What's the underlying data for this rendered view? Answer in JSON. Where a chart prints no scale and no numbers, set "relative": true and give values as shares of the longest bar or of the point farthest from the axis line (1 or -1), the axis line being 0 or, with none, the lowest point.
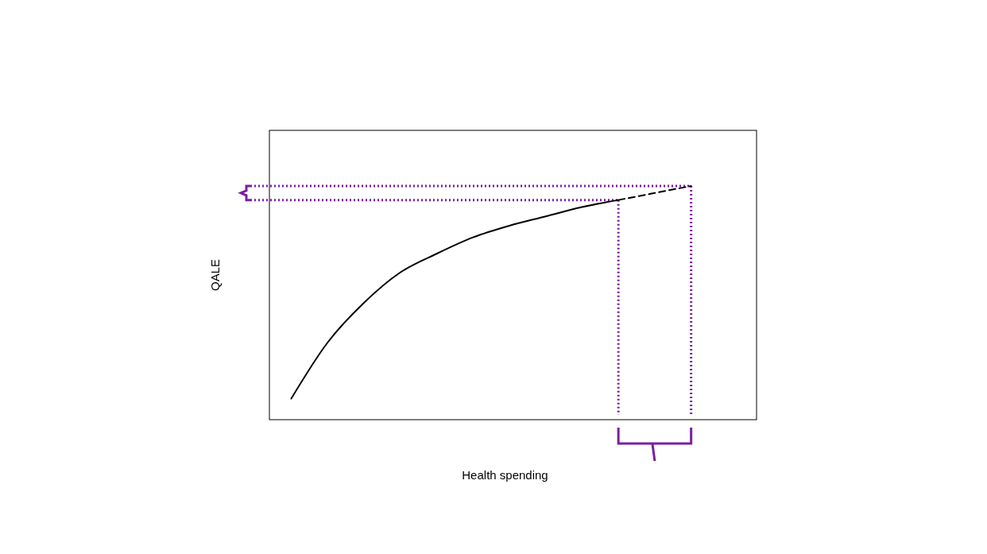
{
  "chart_data": {
    "type": "line",
    "xlabel": "Health spending",
    "ylabel": "QALE",
    "relative": true,
    "categories": [
      null,
      null,
      null,
      null,
      null,
      null,
      null,
      null,
      null,
      null,
      null,
      null
    ],
    "series": [
      {
        "color": "#000000",
        "line_style": "solid",
        "values": [
          0.09,
          0.33,
          0.5,
          0.63,
          0.71,
          0.78,
          0.83,
          0.87,
          0.91,
          0.94,
          null,
          null
        ]
      },
      {
        "color": "#000000",
        "line_style": "dashed",
        "values": [
          null,
          null,
          null,
          null,
          null,
          null,
          null,
          null,
          null,
          0.94,
          0.97,
          1
        ]
      }
    ],
    "ref_lines": [
      {
        "axis": "y",
        "value": 0.94,
        "color": "#7b1fa2",
        "line_style": "dotted"
      },
      {
        "axis": "y",
        "value": 1,
        "color": "#7b1fa2",
        "line_style": "dotted"
      }
    ]
  }
}
